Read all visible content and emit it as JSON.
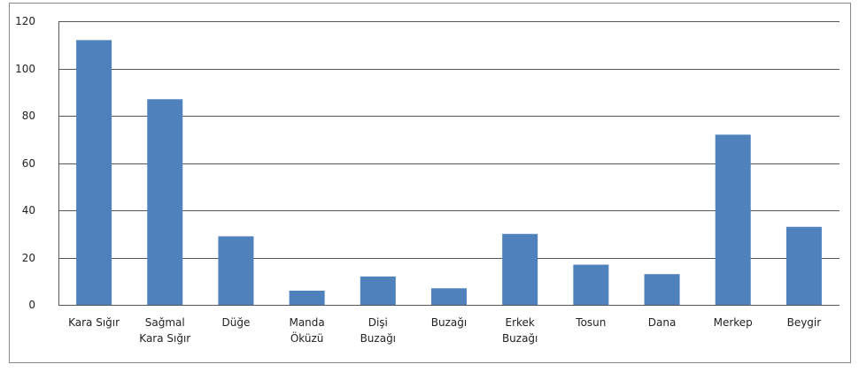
{
  "chart_data": {
    "type": "bar",
    "categories": [
      "Kara Sığır",
      "Sağmal\nKara Sığır",
      "Düğe",
      "Manda\nÖküzü",
      "Dişi\nBuzağı",
      "Buzağı",
      "Erkek\nBuzağı",
      "Tosun",
      "Dana",
      "Merkep",
      "Beygir"
    ],
    "values": [
      112,
      87,
      29,
      6,
      12,
      7,
      30,
      17,
      13,
      72,
      33
    ],
    "color": "#4f81bd",
    "ylim": [
      0,
      120
    ],
    "yticks": [
      0,
      20,
      40,
      60,
      80,
      100,
      120
    ],
    "grid": true
  }
}
